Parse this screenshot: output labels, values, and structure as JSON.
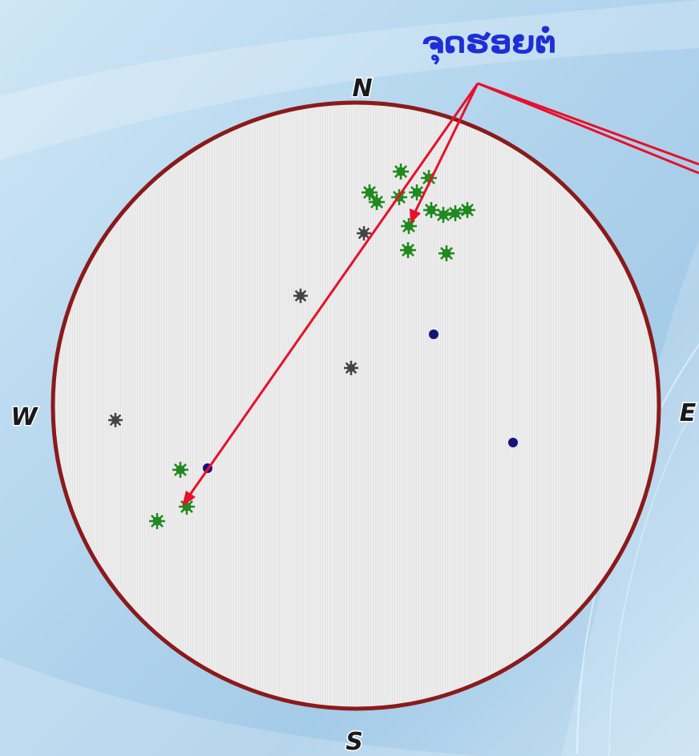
{
  "diagram": {
    "callout_label": "ຈຸດຮອຍຕໍ່",
    "directions": {
      "north": "N",
      "south": "S",
      "east": "E",
      "west": "W"
    },
    "colors": {
      "circle_border": "#8b1a1a",
      "circle_fill": "#ececec",
      "green_point": "#1f8a1f",
      "gray_point": "#444444",
      "blue_point": "#14147a",
      "arrow": "#e8102a",
      "label": "#1e2fd6"
    }
  }
}
